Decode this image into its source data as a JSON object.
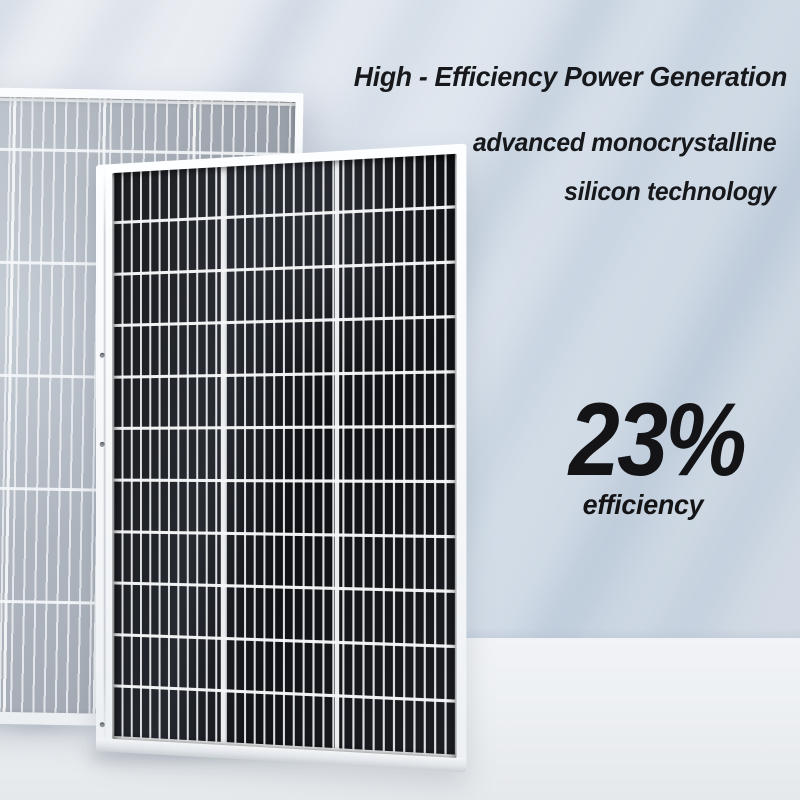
{
  "hero": {
    "headline": "High - Efficiency Power Generation",
    "subline1": "advanced monocrystalline",
    "subline2": "silicon technology"
  },
  "stat": {
    "value": "23%",
    "label": "efficiency"
  },
  "scene": {
    "objects": [
      "back-solar-panel",
      "front-solar-panel"
    ],
    "colors": {
      "text": "#17181b",
      "wall_light": "#e8ecf2",
      "wall_shade": "#ccd7e3",
      "floor": "#eef1f4",
      "panel_frame": "#f5f7f9",
      "front_panel_cell": "#121316",
      "back_panel_cell": "#a5acb5",
      "leaf_shadow": "#98aac2"
    }
  }
}
